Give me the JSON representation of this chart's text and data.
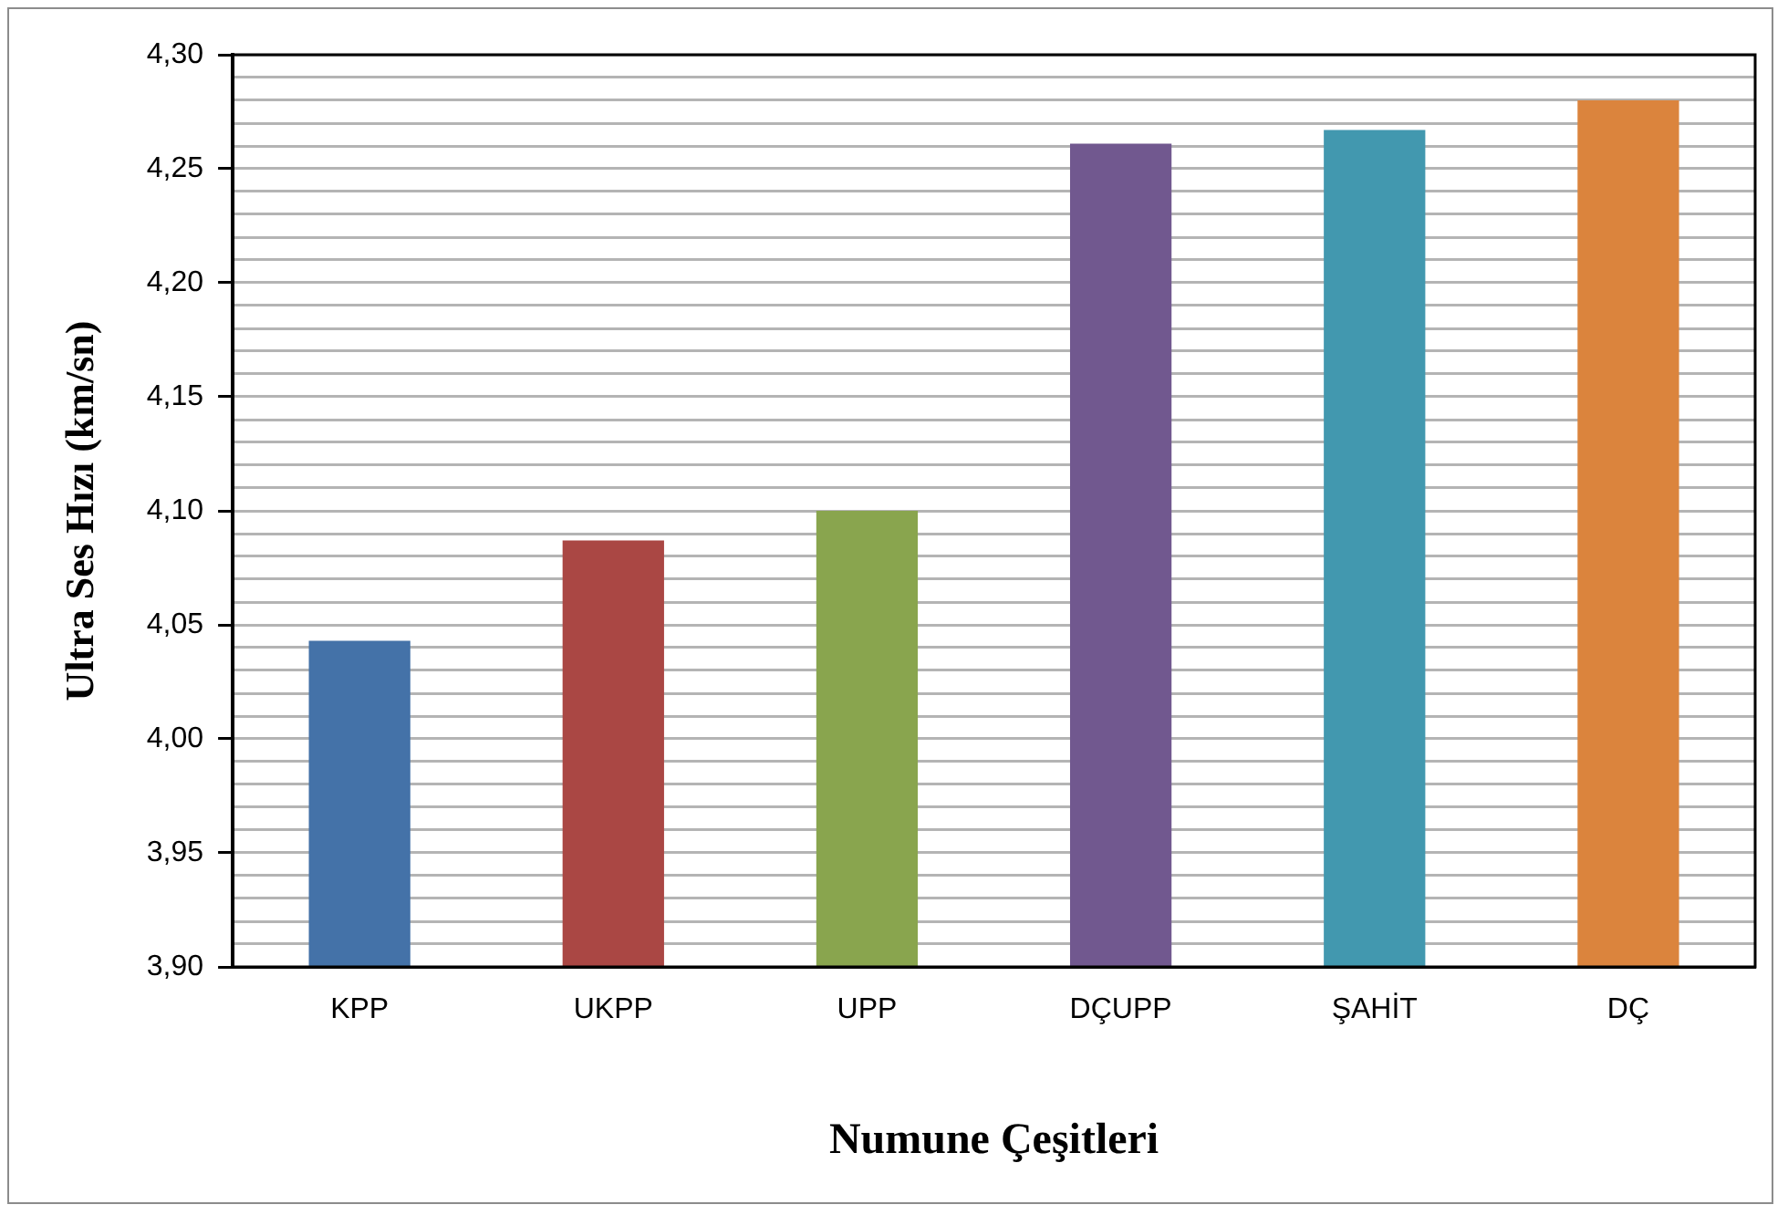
{
  "chart_data": {
    "type": "bar",
    "xlabel": "Numune Çeşitleri",
    "ylabel": "Ultra Ses Hızı (km/sn)",
    "categories": [
      "KPP",
      "UKPP",
      "UPP",
      "DÇUPP",
      "ŞAHİT",
      "DÇ"
    ],
    "values": [
      4.043,
      4.087,
      4.1,
      4.261,
      4.267,
      4.28
    ],
    "colors": [
      "#4472a8",
      "#aa4744",
      "#89a54e",
      "#71588f",
      "#4298af",
      "#db843d"
    ],
    "ylim": [
      3.9,
      4.3
    ],
    "yticks": [
      {
        "value": 3.9,
        "label": "3,90"
      },
      {
        "value": 3.91,
        "label": null
      },
      {
        "value": 3.92,
        "label": null
      },
      {
        "value": 3.93,
        "label": null
      },
      {
        "value": 3.94,
        "label": null
      },
      {
        "value": 3.95,
        "label": "3,95"
      },
      {
        "value": 3.96,
        "label": null
      },
      {
        "value": 3.97,
        "label": null
      },
      {
        "value": 3.98,
        "label": null
      },
      {
        "value": 3.99,
        "label": null
      },
      {
        "value": 4.0,
        "label": "4,00"
      },
      {
        "value": 4.01,
        "label": null
      },
      {
        "value": 4.02,
        "label": null
      },
      {
        "value": 4.03,
        "label": null
      },
      {
        "value": 4.04,
        "label": null
      },
      {
        "value": 4.05,
        "label": "4,05"
      },
      {
        "value": 4.06,
        "label": null
      },
      {
        "value": 4.07,
        "label": null
      },
      {
        "value": 4.08,
        "label": null
      },
      {
        "value": 4.09,
        "label": null
      },
      {
        "value": 4.1,
        "label": "4,10"
      },
      {
        "value": 4.11,
        "label": null
      },
      {
        "value": 4.12,
        "label": null
      },
      {
        "value": 4.13,
        "label": null
      },
      {
        "value": 4.14,
        "label": null
      },
      {
        "value": 4.15,
        "label": "4,15"
      },
      {
        "value": 4.16,
        "label": null
      },
      {
        "value": 4.17,
        "label": null
      },
      {
        "value": 4.18,
        "label": null
      },
      {
        "value": 4.19,
        "label": null
      },
      {
        "value": 4.2,
        "label": "4,20"
      },
      {
        "value": 4.21,
        "label": null
      },
      {
        "value": 4.22,
        "label": null
      },
      {
        "value": 4.23,
        "label": null
      },
      {
        "value": 4.24,
        "label": null
      },
      {
        "value": 4.25,
        "label": "4,25"
      },
      {
        "value": 4.26,
        "label": null
      },
      {
        "value": 4.27,
        "label": null
      },
      {
        "value": 4.28,
        "label": null
      },
      {
        "value": 4.29,
        "label": null
      },
      {
        "value": 4.3,
        "label": "4,30"
      }
    ],
    "grid": "y"
  }
}
